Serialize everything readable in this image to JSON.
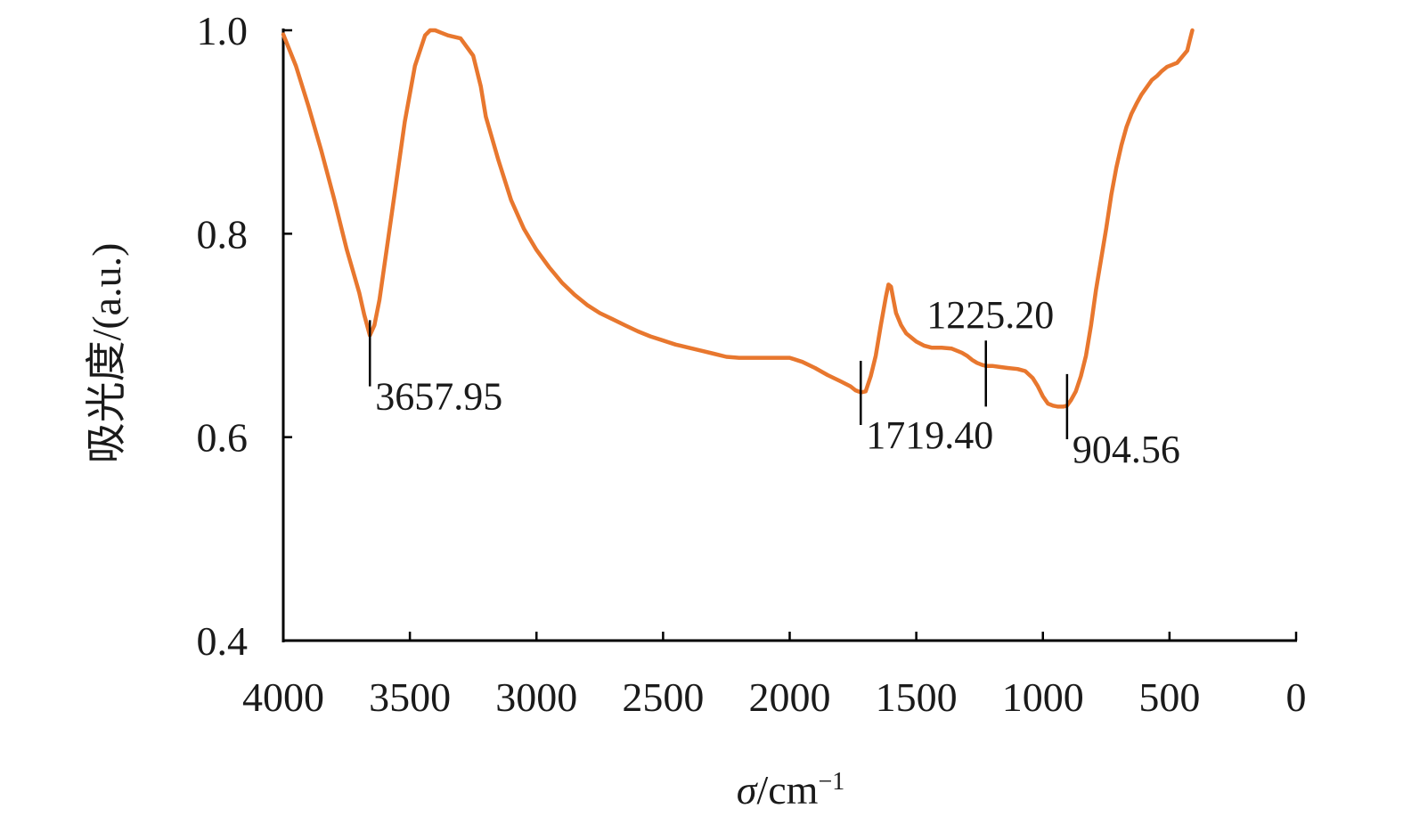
{
  "chart_data": {
    "type": "line",
    "title": "",
    "xlabel_sym": "σ",
    "xlabel_unit": "/cm",
    "xlabel_exp": "−1",
    "ylabel": "吸光度/(a.u.)",
    "xlim": [
      4000,
      0
    ],
    "ylim": [
      0.4,
      1.0
    ],
    "xticks": [
      4000,
      3500,
      3000,
      2500,
      2000,
      1500,
      1000,
      500,
      0
    ],
    "xtick_labels": [
      "4000",
      "3500",
      "3000",
      "2500",
      "2000",
      "1500",
      "1000",
      "500",
      "0"
    ],
    "yticks": [
      0.4,
      0.6,
      0.8,
      1.0
    ],
    "ytick_labels": [
      "0.4",
      "0.6",
      "0.8",
      "1.0"
    ],
    "grid": false,
    "legend": "none",
    "line_color": "#E8772E",
    "series": [
      {
        "x": [
          4000,
          3950,
          3900,
          3850,
          3800,
          3750,
          3700,
          3680,
          3658,
          3640,
          3620,
          3600,
          3560,
          3520,
          3480,
          3440,
          3420,
          3400,
          3380,
          3350,
          3300,
          3250,
          3220,
          3200,
          3150,
          3100,
          3050,
          3000,
          2950,
          2900,
          2850,
          2800,
          2750,
          2700,
          2650,
          2600,
          2550,
          2500,
          2450,
          2400,
          2350,
          2300,
          2250,
          2200,
          2100,
          2000,
          1950,
          1900,
          1850,
          1800,
          1760,
          1740,
          1719,
          1700,
          1680,
          1660,
          1640,
          1620,
          1610,
          1600,
          1590,
          1580,
          1560,
          1540,
          1520,
          1500,
          1470,
          1440,
          1400,
          1360,
          1320,
          1300,
          1280,
          1260,
          1240,
          1225,
          1200,
          1170,
          1140,
          1100,
          1070,
          1040,
          1020,
          1000,
          980,
          960,
          940,
          920,
          905,
          890,
          870,
          850,
          830,
          810,
          790,
          770,
          750,
          730,
          710,
          690,
          670,
          650,
          630,
          610,
          590,
          570,
          550,
          530,
          510,
          490,
          470,
          450,
          430,
          420,
          410
        ],
        "y": [
          0.996,
          0.965,
          0.925,
          0.882,
          0.835,
          0.785,
          0.742,
          0.72,
          0.7,
          0.71,
          0.735,
          0.77,
          0.84,
          0.91,
          0.965,
          0.995,
          1.0,
          1.0,
          0.998,
          0.995,
          0.992,
          0.975,
          0.945,
          0.915,
          0.872,
          0.833,
          0.805,
          0.784,
          0.767,
          0.752,
          0.74,
          0.73,
          0.722,
          0.716,
          0.71,
          0.704,
          0.699,
          0.695,
          0.691,
          0.688,
          0.685,
          0.682,
          0.679,
          0.678,
          0.678,
          0.678,
          0.674,
          0.668,
          0.661,
          0.655,
          0.65,
          0.646,
          0.644,
          0.645,
          0.66,
          0.68,
          0.71,
          0.738,
          0.75,
          0.748,
          0.735,
          0.722,
          0.71,
          0.702,
          0.698,
          0.694,
          0.69,
          0.688,
          0.688,
          0.687,
          0.683,
          0.68,
          0.676,
          0.673,
          0.671,
          0.67,
          0.67,
          0.669,
          0.668,
          0.667,
          0.665,
          0.658,
          0.65,
          0.64,
          0.633,
          0.631,
          0.63,
          0.63,
          0.631,
          0.636,
          0.645,
          0.66,
          0.68,
          0.71,
          0.745,
          0.775,
          0.805,
          0.838,
          0.865,
          0.887,
          0.905,
          0.918,
          0.928,
          0.937,
          0.944,
          0.951,
          0.955,
          0.96,
          0.964,
          0.966,
          0.968,
          0.974,
          0.98,
          0.99,
          1.0
        ]
      }
    ],
    "annotations": [
      {
        "label": "3657.95",
        "x": 3657.95,
        "y_low": 0.65,
        "y_high": 0.715,
        "label_side": "right-below"
      },
      {
        "label": "1719.40",
        "x": 1719.4,
        "y_low": 0.612,
        "y_high": 0.675,
        "label_side": "right-below"
      },
      {
        "label": "1225.20",
        "x": 1225.2,
        "y_low": 0.63,
        "y_high": 0.695,
        "label_side": "above"
      },
      {
        "label": "904.56",
        "x": 904.56,
        "y_low": 0.598,
        "y_high": 0.662,
        "label_side": "right-below"
      }
    ]
  }
}
